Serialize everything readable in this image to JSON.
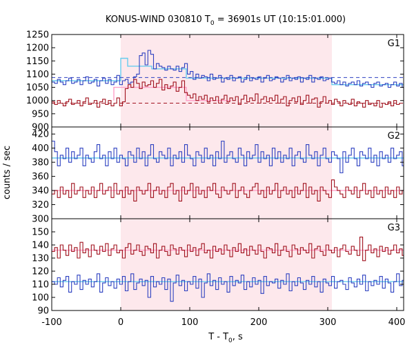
{
  "chart_data": {
    "type": "line",
    "title": "KONUS-WIND 030810 T",
    "title_sub": "0",
    "title_rest": " = 36901s UT (10:15:01.000)",
    "xlabel": "T - T",
    "xlabel_sub": "0",
    "xlabel_rest": ", s",
    "ylabel": "counts / sec",
    "xlim": [
      -100,
      410
    ],
    "xticks": [
      -100,
      0,
      100,
      200,
      300,
      400
    ],
    "highlight_interval": [
      0,
      306
    ],
    "colors": {
      "highlight": "#fde8ec",
      "blue": "#2b3fc0",
      "red": "#a0101c",
      "cyan": "#66ccee",
      "pink": "#ff9fc8",
      "axis": "#000000"
    },
    "panels": [
      {
        "name": "G1",
        "ylim": [
          900,
          1250
        ],
        "yticks": [
          900,
          950,
          1000,
          1050,
          1100,
          1150,
          1200,
          1250
        ],
        "series": [
          {
            "name": "blue",
            "color": "blue",
            "step": 4.096,
            "start": -100,
            "values": [
              1070,
              1065,
              1080,
              1070,
              1060,
              1075,
              1085,
              1065,
              1070,
              1080,
              1060,
              1075,
              1090,
              1065,
              1070,
              1080,
              1055,
              1075,
              1085,
              1065,
              1080,
              1060,
              1070,
              1095,
              1060,
              1075,
              1080,
              1065,
              1070,
              1090,
              1100,
              1170,
              1180,
              1135,
              1190,
              1175,
              1120,
              1140,
              1130,
              1125,
              1115,
              1130,
              1120,
              1115,
              1130,
              1110,
              1125,
              1140,
              1100,
              1110,
              1080,
              1100,
              1085,
              1095,
              1090,
              1075,
              1100,
              1080,
              1085,
              1095,
              1070,
              1085,
              1080,
              1095,
              1075,
              1085,
              1090,
              1070,
              1080,
              1095,
              1075,
              1085,
              1080,
              1090,
              1070,
              1085,
              1095,
              1075,
              1080,
              1090,
              1085,
              1070,
              1080,
              1095,
              1075,
              1085,
              1080,
              1090,
              1070,
              1085,
              1080,
              1095,
              1070,
              1085,
              1080,
              1090,
              1075,
              1080,
              1085,
              1070,
              1065,
              1075,
              1060,
              1070,
              1055,
              1065,
              1070,
              1060,
              1075,
              1055,
              1065,
              1070,
              1060,
              1050,
              1065,
              1070,
              1055,
              1060,
              1065,
              1050,
              1060,
              1070,
              1055,
              1065,
              1050,
              1060
            ]
          },
          {
            "name": "red",
            "color": "red",
            "step": 4.096,
            "start": -100,
            "values": [
              995,
              985,
              1000,
              990,
              980,
              995,
              1005,
              985,
              990,
              1000,
              980,
              995,
              1010,
              985,
              990,
              1000,
              975,
              995,
              1005,
              985,
              1000,
              980,
              990,
              1010,
              980,
              995,
              1045,
              1060,
              1050,
              1080,
              1065,
              1045,
              1070,
              1055,
              1060,
              1075,
              1050,
              1065,
              1080,
              1040,
              1060,
              1045,
              1055,
              1070,
              1035,
              1050,
              1075,
              1030,
              1020,
              1010,
              1025,
              1000,
              1015,
              1005,
              1020,
              995,
              1010,
              1000,
              1015,
              990,
              1005,
              1020,
              995,
              1010,
              1000,
              1015,
              985,
              1005,
              1020,
              995,
              1010,
              1000,
              1025,
              990,
              1005,
              1015,
              995,
              1010,
              1000,
              1020,
              990,
              1005,
              1015,
              980,
              1000,
              1010,
              995,
              1015,
              985,
              1000,
              1020,
              990,
              1005,
              1010,
              975,
              995,
              1015,
              990,
              1000,
              985,
              1005,
              995,
              980,
              1000,
              990,
              985,
              1005,
              980,
              995,
              990,
              975,
              1000,
              985,
              990,
              980,
              1000,
              975,
              990,
              985,
              995,
              980,
              1000,
              985,
              990
            ]
          },
          {
            "name": "cyan-fit",
            "color": "cyan",
            "points": [
              [
                -100,
                1075
              ],
              [
                0,
                1075
              ],
              [
                0,
                1160
              ],
              [
                10,
                1160
              ],
              [
                10,
                1130
              ],
              [
                45,
                1130
              ],
              [
                45,
                1120
              ],
              [
                95,
                1120
              ],
              [
                95,
                1085
              ],
              [
                306,
                1085
              ],
              [
                306,
                1060
              ],
              [
                410,
                1060
              ]
            ]
          },
          {
            "name": "pink-fit",
            "color": "pink",
            "points": [
              [
                -10,
                1000
              ],
              [
                -10,
                1050
              ],
              [
                95,
                1050
              ],
              [
                95,
                1000
              ],
              [
                160,
                1000
              ]
            ]
          }
        ],
        "dashed": [
          {
            "color": "blue",
            "value": 1087
          },
          {
            "color": "red",
            "value": 990
          }
        ]
      },
      {
        "name": "G2",
        "ylim": [
          300,
          430
        ],
        "yticks": [
          300,
          320,
          340,
          360,
          380,
          400,
          420
        ],
        "series": [
          {
            "name": "blue",
            "color": "blue",
            "step": 4.096,
            "start": -100,
            "values": [
              410,
              395,
              375,
              390,
              385,
              400,
              380,
              395,
              385,
              390,
              400,
              375,
              390,
              385,
              380,
              395,
              405,
              385,
              390,
              375,
              395,
              385,
              400,
              380,
              390,
              385,
              375,
              395,
              390,
              380,
              400,
              385,
              395,
              375,
              390,
              405,
              385,
              380,
              395,
              390,
              385,
              400,
              375,
              390,
              385,
              395,
              380,
              405,
              390,
              385,
              375,
              395,
              390,
              380,
              400,
              385,
              390,
              375,
              395,
              385,
              410,
              380,
              390,
              395,
              385,
              380,
              400,
              390,
              375,
              395,
              385,
              390,
              405,
              380,
              395,
              385,
              390,
              375,
              400,
              385,
              395,
              380,
              390,
              385,
              400,
              375,
              390,
              395,
              385,
              380,
              405,
              390,
              385,
              395,
              375,
              390,
              400,
              385,
              380,
              395,
              390,
              385,
              365,
              395,
              380,
              390,
              400,
              385,
              375,
              395,
              390,
              385,
              400,
              380,
              390,
              375,
              395,
              385,
              390,
              380,
              400,
              385,
              390,
              395,
              375,
              390
            ]
          },
          {
            "name": "red",
            "color": "red",
            "step": 4.096,
            "start": -100,
            "values": [
              335,
              340,
              330,
              345,
              335,
              340,
              330,
              350,
              335,
              340,
              345,
              330,
              340,
              335,
              345,
              330,
              340,
              350,
              335,
              340,
              345,
              330,
              350,
              335,
              340,
              330,
              345,
              335,
              340,
              325,
              345,
              340,
              335,
              340,
              350,
              330,
              340,
              345,
              335,
              340,
              330,
              345,
              350,
              335,
              340,
              325,
              345,
              335,
              340,
              350,
              330,
              345,
              335,
              340,
              330,
              345,
              340,
              350,
              335,
              330,
              345,
              340,
              335,
              340,
              350,
              330,
              340,
              345,
              335,
              330,
              340,
              345,
              350,
              335,
              340,
              330,
              345,
              335,
              340,
              350,
              330,
              340,
              345,
              335,
              340,
              330,
              345,
              335,
              340,
              350,
              330,
              345,
              335,
              340,
              325,
              345,
              340,
              335,
              330,
              355,
              345,
              340,
              335,
              330,
              345,
              340,
              335,
              345,
              330,
              340,
              350,
              335,
              340,
              330,
              345,
              335,
              340,
              330,
              345,
              335,
              340,
              330,
              345,
              335,
              340,
              330
            ]
          },
          {
            "name": "cyan-fit",
            "color": "cyan",
            "points": [
              [
                -100,
                386
              ],
              [
                410,
                386
              ]
            ]
          },
          {
            "name": "pink-fit",
            "color": "pink",
            "points": [
              [
                -100,
                340
              ],
              [
                410,
                340
              ]
            ]
          }
        ],
        "dashed": []
      },
      {
        "name": "G3",
        "ylim": [
          90,
          160
        ],
        "yticks": [
          90,
          100,
          110,
          120,
          130,
          140,
          150
        ],
        "series": [
          {
            "name": "red",
            "color": "red",
            "step": 4.096,
            "start": -100,
            "values": [
              135,
              138,
              130,
              140,
              136,
              132,
              140,
              135,
              138,
              130,
              142,
              134,
              137,
              131,
              140,
              136,
              133,
              139,
              135,
              141,
              132,
              137,
              140,
              134,
              136,
              130,
              138,
              141,
              133,
              136,
              140,
              135,
              132,
              139,
              137,
              134,
              141,
              130,
              136,
              139,
              135,
              132,
              140,
              137,
              133,
              138,
              136,
              131,
              140,
              135,
              138,
              132,
              137,
              141,
              134,
              136,
              130,
              139,
              135,
              137,
              133,
              140,
              136,
              131,
              138,
              135,
              141,
              134,
              137,
              132,
              139,
              136,
              133,
              140,
              135,
              130,
              138,
              137,
              134,
              141,
              132,
              136,
              139,
              135,
              131,
              140,
              137,
              133,
              138,
              136,
              134,
              141,
              130,
              137,
              139,
              135,
              132,
              140,
              136,
              134,
              138,
              131,
              137,
              140,
              135,
              133,
              139,
              136,
              132,
              146,
              128,
              136,
              140,
              134,
              137,
              131,
              139,
              135,
              138,
              133,
              136,
              140,
              134,
              137,
              132,
              138
            ]
          },
          {
            "name": "blue",
            "color": "blue",
            "step": 4.096,
            "start": -100,
            "values": [
              112,
              110,
              115,
              108,
              113,
              116,
              104,
              112,
              110,
              117,
              106,
              113,
              110,
              114,
              108,
              112,
              118,
              104,
              111,
              115,
              109,
              112,
              107,
              114,
              110,
              116,
              105,
              112,
              118,
              106,
              111,
              114,
              109,
              113,
              100,
              116,
              108,
              112,
              110,
              115,
              106,
              114,
              97,
              111,
              117,
              109,
              113,
              105,
              112,
              110,
              116,
              107,
              114,
              100,
              111,
              118,
              109,
              113,
              106,
              115,
              110,
              112,
              104,
              116,
              109,
              113,
              111,
              117,
              106,
              112,
              108,
              115,
              110,
              113,
              103,
              116,
              109,
              112,
              111,
              114,
              107,
              113,
              110,
              118,
              105,
              112,
              109,
              115,
              111,
              106,
              113,
              110,
              116,
              108,
              112,
              104,
              114,
              111,
              109,
              116,
              107,
              112,
              113,
              110,
              106,
              115,
              111,
              108,
              114,
              110,
              117,
              105,
              112,
              109,
              113,
              110,
              116,
              107,
              114,
              111,
              104,
              112,
              118,
              109,
              113,
              110
            ]
          },
          {
            "name": "cyan-fit",
            "color": "cyan",
            "points": [
              [
                -100,
                112
              ],
              [
                410,
                112
              ]
            ]
          },
          {
            "name": "pink-fit",
            "color": "pink",
            "points": [
              [
                -100,
                136
              ],
              [
                410,
                136
              ]
            ]
          }
        ],
        "dashed": []
      }
    ]
  }
}
